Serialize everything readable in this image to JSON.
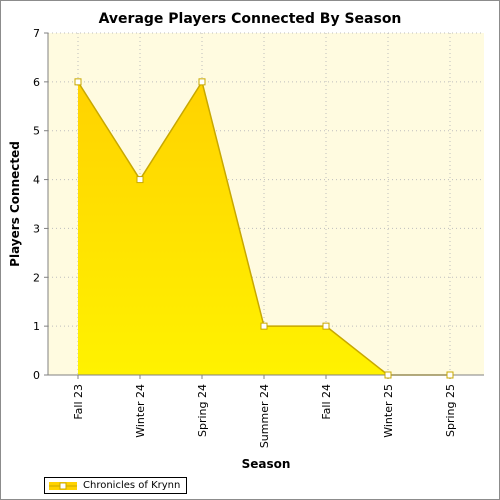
{
  "chart_data": {
    "type": "area",
    "title": "Average Players Connected By Season",
    "xlabel": "Season",
    "ylabel": "Players Connected",
    "categories": [
      "Fall 23",
      "Winter 24",
      "Spring 24",
      "Summer 24",
      "Fall 24",
      "Winter 25",
      "Spring 25"
    ],
    "series": [
      {
        "name": "Chronicles of Krynn",
        "values": [
          6,
          4,
          6,
          1,
          1,
          0,
          0
        ]
      }
    ],
    "ylim": [
      0,
      7
    ],
    "yticks": [
      0,
      1,
      2,
      3,
      4,
      5,
      6,
      7
    ],
    "grid": true,
    "legend": "bottom-left"
  },
  "colors": {
    "plot_background": "#fffbe0",
    "area_top": "#ffd200",
    "area_bottom": "#fff200",
    "line": "#c8a800",
    "marker_fill": "#ffffff",
    "grid": "#bdbdbd"
  }
}
